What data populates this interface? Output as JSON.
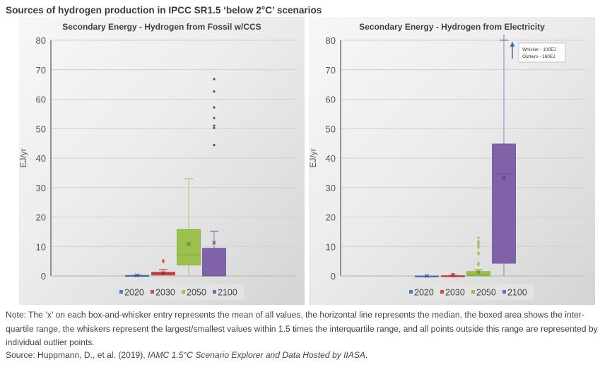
{
  "figure": {
    "title": "Sources of hydrogen production in IPCC SR1.5 ‘below 2°C’ scenarios",
    "note": "Note: The ‘x’ on each box-and-whisker entry represents the mean of all values, the horizontal line represents the median, the boxed area shows the inter-quartile range, the whiskers represent the largest/smallest values within 1.5 times the interquartile range, and all points outside this range are represented by individual outlier points.",
    "source_prefix": "Source: Huppmann, D., et al. (2019), ",
    "source_title": "IAMC 1.5°C Scenario Explorer and Data Hosted by IIASA",
    "source_suffix": "."
  },
  "colors": {
    "2020": "#4a7ebb",
    "2030": "#d04a45",
    "2050": "#9bc14c",
    "2100": "#7f62a8"
  },
  "chart_data": [
    {
      "type": "boxplot",
      "title": "Secondary Energy  - Hydrogen from Fossil w/CCS",
      "xlabel": "",
      "ylabel": "EJ/yr",
      "ylim": [
        0,
        80
      ],
      "yticks": [
        0,
        10,
        20,
        30,
        40,
        50,
        60,
        70,
        80
      ],
      "grid": true,
      "legend_position": "bottom",
      "categories": [
        "2020",
        "2030",
        "2050",
        "2100"
      ],
      "series": [
        {
          "name": "2020",
          "whisker_low": 0,
          "q1": 0,
          "median": 0.1,
          "q3": 0.2,
          "whisker_high": 0.3,
          "mean": 0.2,
          "outliers": []
        },
        {
          "name": "2030",
          "whisker_low": 0,
          "q1": 0.3,
          "median": 0.8,
          "q3": 1.3,
          "whisker_high": 2.2,
          "mean": 1.0,
          "outliers": [
            4.8,
            5.3
          ]
        },
        {
          "name": "2050",
          "whisker_low": 0,
          "q1": 3.7,
          "median": 7.2,
          "q3": 15.8,
          "whisker_high": 33,
          "mean": 10.9,
          "outliers": []
        },
        {
          "name": "2100",
          "whisker_low": 0,
          "q1": 0,
          "median": 0,
          "q3": 9.4,
          "whisker_high": 15.2,
          "mean": 11.3,
          "outliers": [
            44.4,
            50.2,
            51.0,
            53.6,
            57.2,
            62.6,
            66.8
          ]
        }
      ],
      "annotation": null
    },
    {
      "type": "boxplot",
      "title": "Secondary Energy - Hydrogen from Electricity",
      "xlabel": "",
      "ylabel": "EJ/yr",
      "ylim": [
        0,
        80
      ],
      "yticks": [
        0,
        10,
        20,
        30,
        40,
        50,
        60,
        70,
        80
      ],
      "grid": true,
      "legend_position": "bottom",
      "categories": [
        "2020",
        "2030",
        "2050",
        "2100"
      ],
      "series": [
        {
          "name": "2020",
          "whisker_low": 0,
          "q1": 0,
          "median": 0,
          "q3": 0,
          "whisker_high": 0,
          "mean": 0,
          "outliers": []
        },
        {
          "name": "2030",
          "whisker_low": 0,
          "q1": 0,
          "median": 0,
          "q3": 0.1,
          "whisker_high": 0.2,
          "mean": 0.2,
          "outliers": [
            0.6
          ]
        },
        {
          "name": "2050",
          "whisker_low": 0,
          "q1": 0,
          "median": 0.3,
          "q3": 1.5,
          "whisker_high": 2.2,
          "mean": 1.3,
          "outliers": [
            3.8,
            4.4,
            7.4,
            7.9,
            9.6,
            10.1,
            10.8,
            11.3,
            11.8,
            12.9
          ]
        },
        {
          "name": "2100",
          "whisker_low": 0,
          "q1": 4.3,
          "median": 34.7,
          "q3": 44.8,
          "whisker_high": 100,
          "mean": 33.3,
          "outliers": []
        }
      ],
      "annotation": {
        "lines": [
          "Whisker - 100EJ",
          "Outliers - 160EJ"
        ],
        "arrow": "up"
      }
    }
  ]
}
